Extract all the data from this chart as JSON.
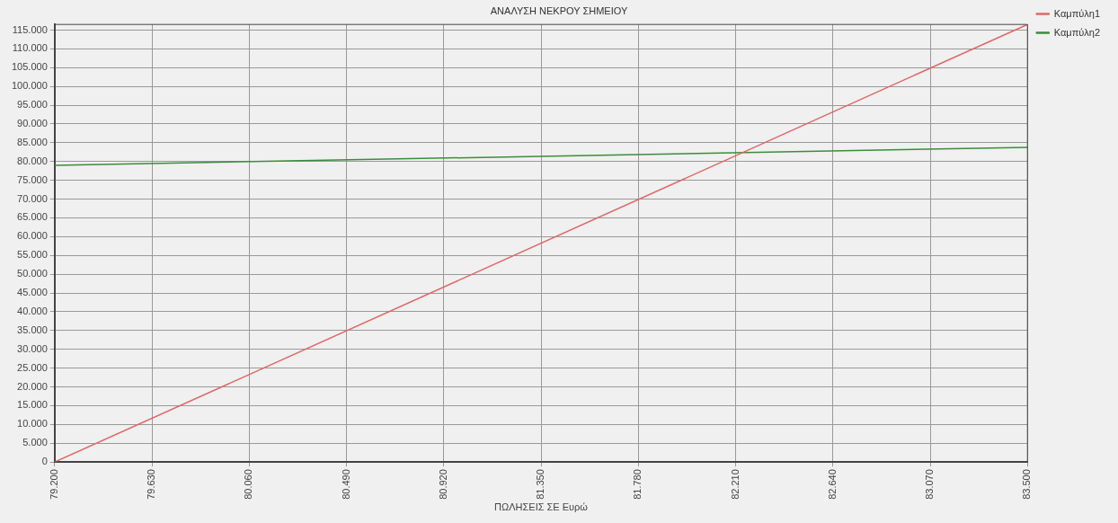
{
  "chart_data": {
    "type": "line",
    "title": "ΑΝΑΛΥΣΗ ΝΕΚΡΟΥ ΣΗΜΕΙΟΥ",
    "xlabel": "ΠΩΛΗΣΕΙΣ ΣΕ Ευρώ",
    "x": [
      79200,
      83500
    ],
    "series": [
      {
        "name": "Καμπύλη1",
        "color": "#e06666",
        "values": [
          0,
          116500
        ]
      },
      {
        "name": "Καμπύλη2",
        "color": "#3c8c3c",
        "values": [
          79000,
          83800
        ]
      }
    ],
    "xlim": [
      79200,
      83500
    ],
    "xticks": [
      {
        "value": 79200,
        "label": "79.200"
      },
      {
        "value": 79630,
        "label": "79.630"
      },
      {
        "value": 80060,
        "label": "80.060"
      },
      {
        "value": 80490,
        "label": "80.490"
      },
      {
        "value": 80920,
        "label": "80.920"
      },
      {
        "value": 81350,
        "label": "81.350"
      },
      {
        "value": 81780,
        "label": "81.780"
      },
      {
        "value": 82210,
        "label": "82.210"
      },
      {
        "value": 82640,
        "label": "82.640"
      },
      {
        "value": 83070,
        "label": "83.070"
      },
      {
        "value": 83500,
        "label": "83.500"
      }
    ],
    "ylim": [
      0,
      116500
    ],
    "yticks": [
      {
        "value": 0,
        "label": "0"
      },
      {
        "value": 5000,
        "label": "5.000"
      },
      {
        "value": 10000,
        "label": "10.000"
      },
      {
        "value": 15000,
        "label": "15.000"
      },
      {
        "value": 20000,
        "label": "20.000"
      },
      {
        "value": 25000,
        "label": "25.000"
      },
      {
        "value": 30000,
        "label": "30.000"
      },
      {
        "value": 35000,
        "label": "35.000"
      },
      {
        "value": 40000,
        "label": "40.000"
      },
      {
        "value": 45000,
        "label": "45.000"
      },
      {
        "value": 50000,
        "label": "50.000"
      },
      {
        "value": 55000,
        "label": "55.000"
      },
      {
        "value": 60000,
        "label": "60.000"
      },
      {
        "value": 65000,
        "label": "65.000"
      },
      {
        "value": 70000,
        "label": "70.000"
      },
      {
        "value": 75000,
        "label": "75.000"
      },
      {
        "value": 80000,
        "label": "80.000"
      },
      {
        "value": 85000,
        "label": "85.000"
      },
      {
        "value": 90000,
        "label": "90.000"
      },
      {
        "value": 95000,
        "label": "95.000"
      },
      {
        "value": 100000,
        "label": "100.000"
      },
      {
        "value": 105000,
        "label": "105.000"
      },
      {
        "value": 110000,
        "label": "110.000"
      },
      {
        "value": 115000,
        "label": "115.000"
      }
    ],
    "grid": true,
    "legend": "top right",
    "marker": "none",
    "line_style": "solid"
  }
}
